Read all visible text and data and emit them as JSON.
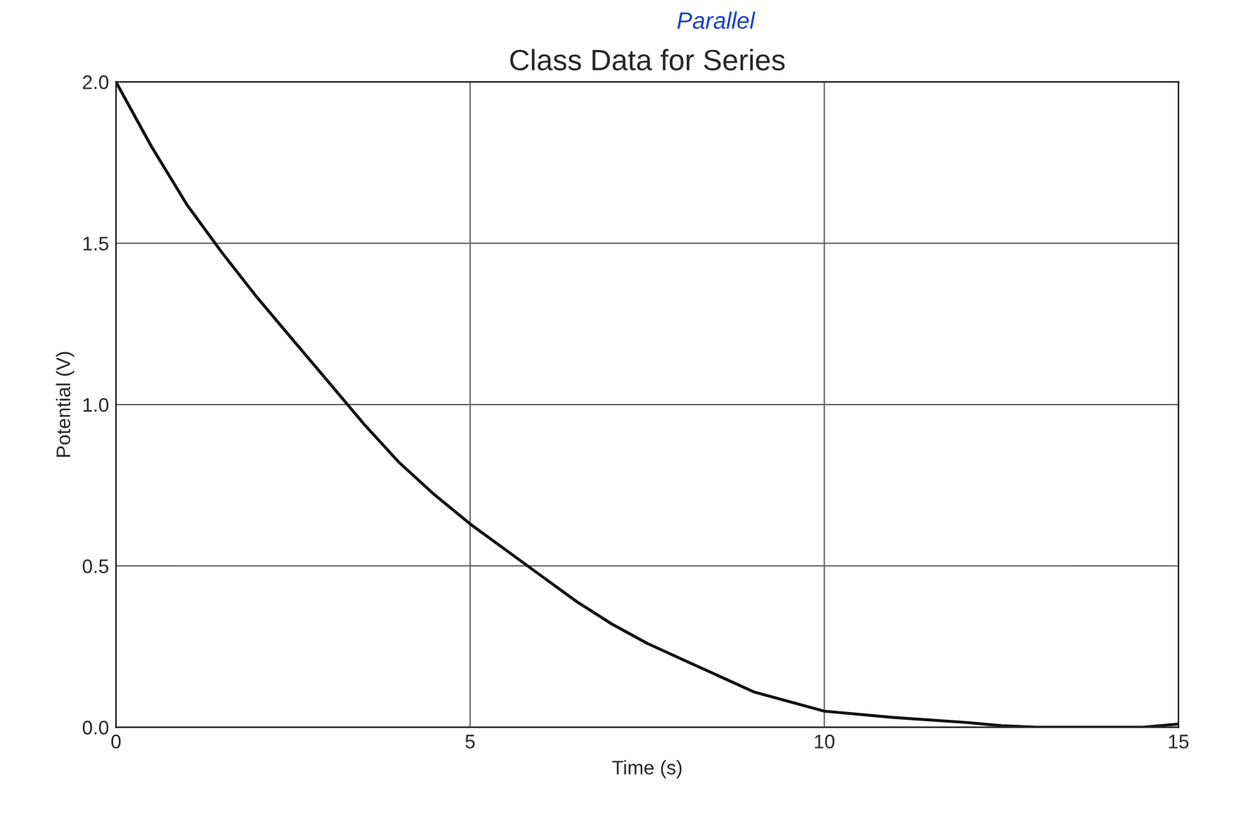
{
  "chart_data": {
    "type": "line",
    "title": "Class Data for Series",
    "annotations": [
      "Parallel"
    ],
    "xlabel": "Time (s)",
    "ylabel": "Potential (V)",
    "x": [
      0,
      0.5,
      1,
      1.5,
      2,
      2.5,
      3,
      3.5,
      4,
      4.5,
      5,
      5.5,
      6,
      6.5,
      7,
      7.5,
      8,
      8.5,
      9,
      9.5,
      10,
      11,
      12,
      12.5,
      13,
      14,
      14.5,
      15
    ],
    "series": [
      {
        "color": "#111111",
        "values": [
          2.0,
          1.8,
          1.62,
          1.47,
          1.33,
          1.2,
          1.07,
          0.94,
          0.82,
          0.72,
          0.63,
          0.55,
          0.47,
          0.39,
          0.32,
          0.26,
          0.21,
          0.16,
          0.11,
          0.08,
          0.05,
          0.03,
          0.015,
          0.005,
          0.0,
          0.0,
          0.0,
          0.01
        ]
      }
    ],
    "xlim": [
      0,
      15
    ],
    "ylim": [
      0,
      2
    ],
    "xticks": [
      0,
      5,
      10,
      15
    ],
    "yticks": [
      {
        "value": 0,
        "label": "0.0"
      },
      {
        "value": 0.5,
        "label": "0.5"
      },
      {
        "value": 1,
        "label": "1.0"
      },
      {
        "value": 1.5,
        "label": "1.5"
      },
      {
        "value": 2,
        "label": "2.0"
      }
    ],
    "grid": true,
    "marker": "none",
    "line_style": "solid",
    "legend": false
  }
}
